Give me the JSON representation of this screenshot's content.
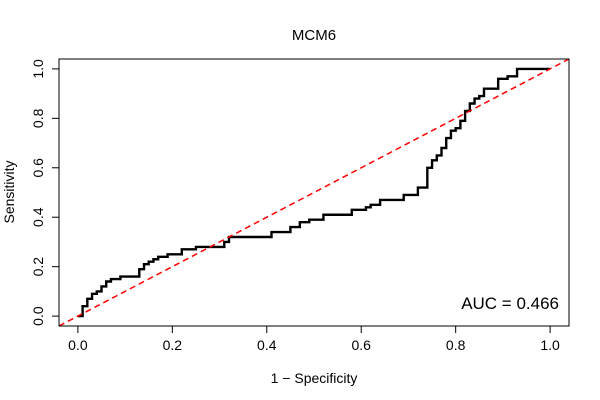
{
  "chart_data": {
    "type": "line",
    "title": "MCM6",
    "xlabel": "1 − Specificity",
    "ylabel": "Sensitivity",
    "xlim": [
      -0.04,
      1.04
    ],
    "ylim": [
      -0.04,
      1.04
    ],
    "x_ticks": [
      0.0,
      0.2,
      0.4,
      0.6,
      0.8,
      1.0
    ],
    "y_ticks": [
      0.0,
      0.2,
      0.4,
      0.6,
      0.8,
      1.0
    ],
    "x_tick_labels": [
      "0.0",
      "0.2",
      "0.4",
      "0.6",
      "0.8",
      "1.0"
    ],
    "y_tick_labels": [
      "0.0",
      "0.2",
      "0.4",
      "0.6",
      "0.8",
      "1.0"
    ],
    "grid": false,
    "annotation": "AUC = 0.466",
    "annotation_position": "bottom-right",
    "series": [
      {
        "color": "#000000",
        "style": "solid",
        "x": [
          0.0,
          0.01,
          0.01,
          0.02,
          0.02,
          0.03,
          0.03,
          0.04,
          0.04,
          0.05,
          0.05,
          0.06,
          0.06,
          0.07,
          0.07,
          0.09,
          0.09,
          0.13,
          0.13,
          0.14,
          0.14,
          0.15,
          0.15,
          0.16,
          0.16,
          0.17,
          0.17,
          0.19,
          0.19,
          0.22,
          0.22,
          0.25,
          0.25,
          0.31,
          0.31,
          0.32,
          0.32,
          0.41,
          0.41,
          0.45,
          0.45,
          0.47,
          0.47,
          0.49,
          0.49,
          0.52,
          0.52,
          0.58,
          0.58,
          0.61,
          0.61,
          0.62,
          0.62,
          0.64,
          0.64,
          0.69,
          0.69,
          0.72,
          0.72,
          0.74,
          0.74,
          0.75,
          0.75,
          0.76,
          0.76,
          0.77,
          0.77,
          0.78,
          0.78,
          0.79,
          0.79,
          0.8,
          0.8,
          0.81,
          0.81,
          0.82,
          0.82,
          0.83,
          0.83,
          0.84,
          0.84,
          0.85,
          0.85,
          0.86,
          0.86,
          0.89,
          0.89,
          0.91,
          0.91,
          0.93,
          0.93,
          0.97,
          1.0
        ],
        "y": [
          0.0,
          0.0,
          0.04,
          0.04,
          0.07,
          0.07,
          0.09,
          0.09,
          0.1,
          0.1,
          0.12,
          0.12,
          0.14,
          0.14,
          0.15,
          0.15,
          0.16,
          0.16,
          0.19,
          0.19,
          0.21,
          0.21,
          0.22,
          0.22,
          0.23,
          0.23,
          0.24,
          0.24,
          0.25,
          0.25,
          0.27,
          0.27,
          0.28,
          0.28,
          0.3,
          0.3,
          0.32,
          0.32,
          0.34,
          0.34,
          0.36,
          0.36,
          0.38,
          0.38,
          0.39,
          0.39,
          0.41,
          0.41,
          0.43,
          0.43,
          0.44,
          0.44,
          0.45,
          0.45,
          0.47,
          0.47,
          0.49,
          0.49,
          0.52,
          0.52,
          0.6,
          0.6,
          0.63,
          0.63,
          0.65,
          0.65,
          0.68,
          0.68,
          0.72,
          0.72,
          0.75,
          0.75,
          0.76,
          0.76,
          0.79,
          0.79,
          0.83,
          0.83,
          0.86,
          0.86,
          0.88,
          0.88,
          0.89,
          0.89,
          0.92,
          0.92,
          0.96,
          0.96,
          0.97,
          0.97,
          1.0,
          1.0,
          1.0
        ]
      },
      {
        "color": "#ff0000",
        "style": "dashed",
        "x": [
          -0.04,
          1.04
        ],
        "y": [
          -0.04,
          1.04
        ]
      }
    ]
  }
}
